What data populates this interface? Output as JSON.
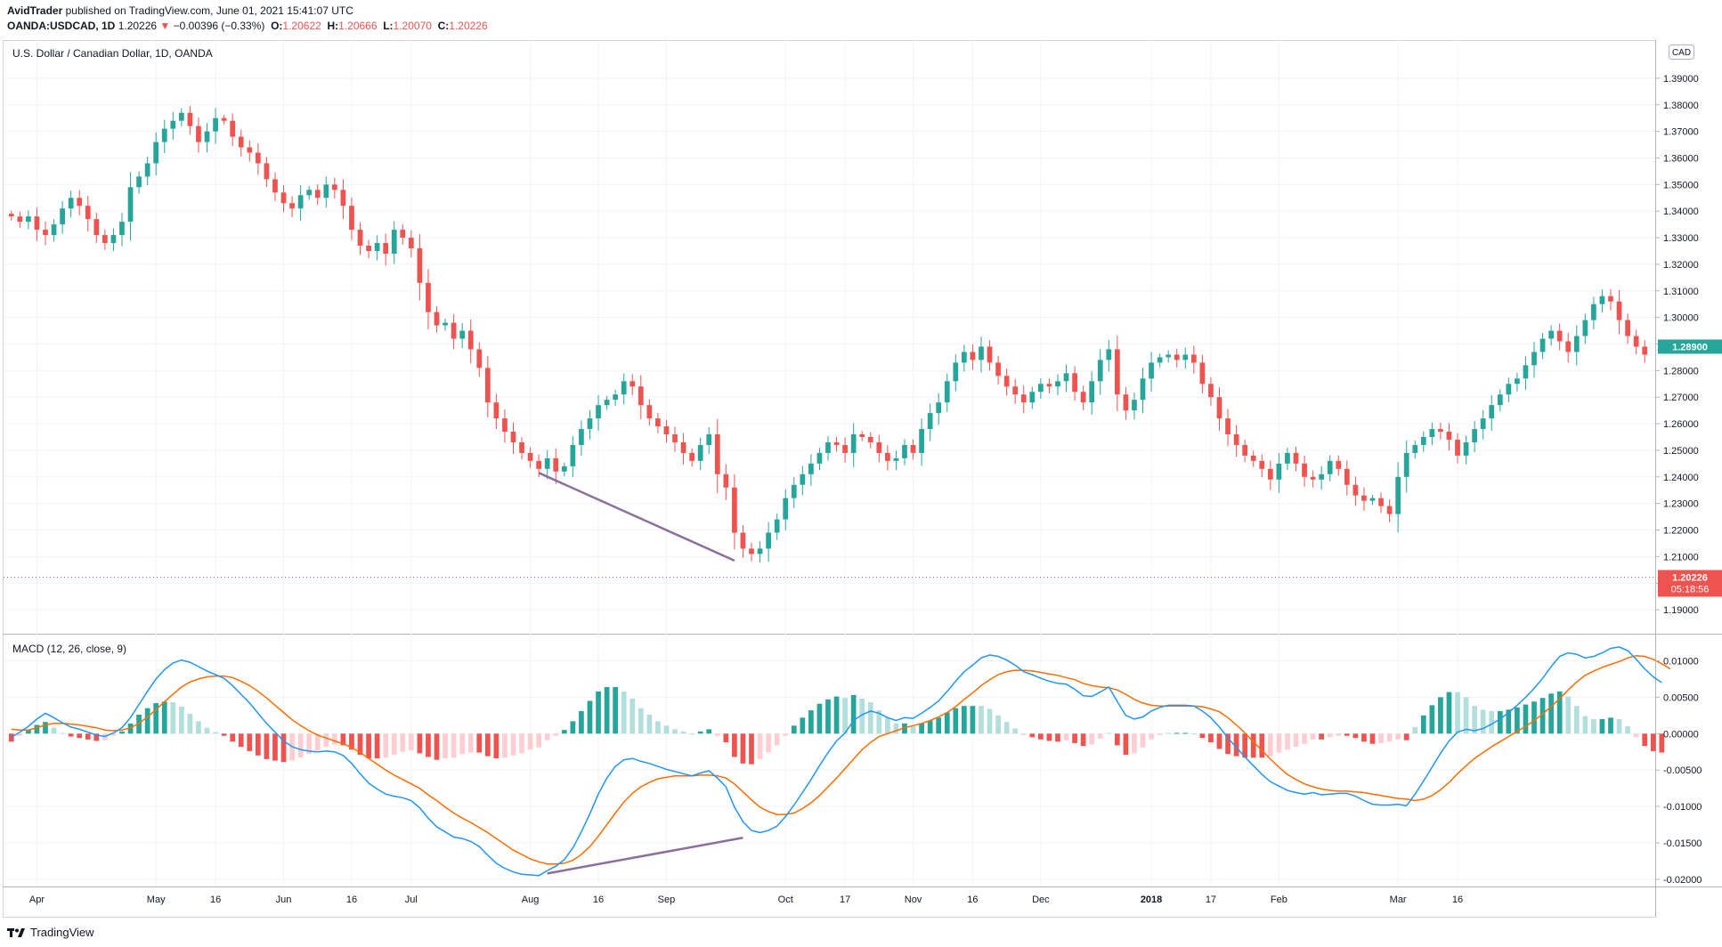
{
  "header": {
    "publisher": "AvidTrader",
    "published_text": "published on TradingView.com, June 01, 2021 15:41:07 UTC",
    "symbol": "OANDA:USDCAD, 1D",
    "last": "1.20226",
    "change": "−0.00396 (−0.33%)",
    "open_label": "O:",
    "open": "1.20622",
    "high_label": "H:",
    "high": "1.20666",
    "low_label": "L:",
    "low": "1.20070",
    "close_label": "C:",
    "close": "1.20226"
  },
  "footer": {
    "brand": "TradingView"
  },
  "colors": {
    "up": "#26a69a",
    "down": "#ef5350",
    "hist_up_strong": "#26a69a",
    "hist_up_weak": "#b2dfdb",
    "hist_dn_strong": "#ef5350",
    "hist_dn_weak": "#ffcdd2",
    "macd_line": "#2196f3",
    "signal_line": "#ff6d00",
    "trendline": "#8a6e9c",
    "grid": "#f0f3fa"
  },
  "chart_data": [
    {
      "type": "candlestick",
      "title": "U.S. Dollar / Canadian Dollar, 1D, OANDA",
      "currency_badge": "CAD",
      "ylim": [
        1.185,
        1.396
      ],
      "y_ticks": [
        "1.39000",
        "1.38000",
        "1.37000",
        "1.36000",
        "1.35000",
        "1.34000",
        "1.33000",
        "1.32000",
        "1.31000",
        "1.30000",
        "1.29000",
        "1.28000",
        "1.27000",
        "1.26000",
        "1.25000",
        "1.24000",
        "1.23000",
        "1.22000",
        "1.21000",
        "1.20000",
        "1.19000"
      ],
      "x_ticks": [
        "Apr",
        "May",
        "16",
        "Jun",
        "16",
        "Jul",
        "Aug",
        "16",
        "Sep",
        "Oct",
        "17",
        "Nov",
        "16",
        "Dec",
        "2018",
        "17",
        "Feb",
        "Mar",
        "16"
      ],
      "price_label": "1.28900",
      "last_price_label": "1.20226",
      "countdown_label": "05:18:56",
      "last_price": 1.20226,
      "closes": [
        1.338,
        1.336,
        1.338,
        1.333,
        1.331,
        1.335,
        1.341,
        1.345,
        1.342,
        1.337,
        1.331,
        1.328,
        1.331,
        1.336,
        1.349,
        1.353,
        1.358,
        1.366,
        1.371,
        1.374,
        1.377,
        1.372,
        1.366,
        1.37,
        1.375,
        1.374,
        1.368,
        1.364,
        1.362,
        1.358,
        1.352,
        1.347,
        1.343,
        1.341,
        1.346,
        1.348,
        1.345,
        1.35,
        1.348,
        1.342,
        1.333,
        1.327,
        1.325,
        1.328,
        1.324,
        1.333,
        1.33,
        1.326,
        1.313,
        1.302,
        1.297,
        1.298,
        1.292,
        1.295,
        1.288,
        1.281,
        1.268,
        1.262,
        1.257,
        1.253,
        1.249,
        1.246,
        1.243,
        1.247,
        1.242,
        1.244,
        1.252,
        1.258,
        1.262,
        1.267,
        1.269,
        1.271,
        1.276,
        1.274,
        1.267,
        1.262,
        1.259,
        1.256,
        1.253,
        1.249,
        1.246,
        1.252,
        1.256,
        1.241,
        1.236,
        1.219,
        1.213,
        1.211,
        1.213,
        1.219,
        1.224,
        1.232,
        1.237,
        1.241,
        1.245,
        1.249,
        1.253,
        1.252,
        1.249,
        1.256,
        1.255,
        1.253,
        1.249,
        1.246,
        1.247,
        1.252,
        1.249,
        1.258,
        1.264,
        1.268,
        1.276,
        1.283,
        1.287,
        1.284,
        1.289,
        1.283,
        1.278,
        1.274,
        1.271,
        1.268,
        1.272,
        1.275,
        1.274,
        1.276,
        1.279,
        1.272,
        1.268,
        1.276,
        1.284,
        1.288,
        1.271,
        1.265,
        1.269,
        1.277,
        1.283,
        1.285,
        1.286,
        1.284,
        1.286,
        1.283,
        1.275,
        1.27,
        1.262,
        1.256,
        1.252,
        1.248,
        1.246,
        1.243,
        1.239,
        1.245,
        1.249,
        1.245,
        1.24,
        1.239,
        1.241,
        1.246,
        1.243,
        1.237,
        1.233,
        1.231,
        1.232,
        1.229,
        1.226,
        1.24,
        1.249,
        1.252,
        1.255,
        1.258,
        1.257,
        1.254,
        1.248,
        1.253,
        1.258,
        1.262,
        1.267,
        1.271,
        1.275,
        1.277,
        1.282,
        1.287,
        1.292,
        1.295,
        1.291,
        1.287,
        1.293,
        1.299,
        1.305,
        1.308,
        1.306,
        1.299,
        1.293,
        1.289,
        1.286
      ],
      "annotation": {
        "type": "trendline",
        "from": [
          1.2415
        ],
        "to": [
          1.2085
        ]
      }
    },
    {
      "type": "histogram+line",
      "title": "MACD (12, 26, close, 9)",
      "ylim": [
        -0.0205,
        0.0125
      ],
      "y_ticks": [
        "0.01000",
        "0.00500",
        "0.00000",
        "-0.00500",
        "-0.01000",
        "-0.01500",
        "-0.02000"
      ],
      "series": [
        {
          "name": "MACD",
          "values": [
            -0.0005,
            0.0002,
            0.001,
            0.002,
            0.0028,
            0.0022,
            0.0015,
            0.0009,
            0.0006,
            0.0002,
            -0.0002,
            -0.0004,
            0.0001,
            0.0008,
            0.0022,
            0.004,
            0.0058,
            0.0075,
            0.0088,
            0.0097,
            0.0101,
            0.0098,
            0.0092,
            0.0086,
            0.0081,
            0.0076,
            0.0066,
            0.0054,
            0.0042,
            0.0028,
            0.0014,
            0.0002,
            -0.001,
            -0.0018,
            -0.0022,
            -0.0024,
            -0.0025,
            -0.0024,
            -0.0025,
            -0.003,
            -0.0041,
            -0.0055,
            -0.0068,
            -0.0076,
            -0.0083,
            -0.0086,
            -0.0088,
            -0.0092,
            -0.0102,
            -0.0116,
            -0.0128,
            -0.0135,
            -0.0142,
            -0.0144,
            -0.0148,
            -0.0155,
            -0.0167,
            -0.0178,
            -0.0185,
            -0.019,
            -0.0193,
            -0.0194,
            -0.0195,
            -0.0188,
            -0.0182,
            -0.0173,
            -0.0157,
            -0.0135,
            -0.011,
            -0.0083,
            -0.0061,
            -0.0045,
            -0.0036,
            -0.0034,
            -0.0038,
            -0.0041,
            -0.0045,
            -0.0049,
            -0.0052,
            -0.0055,
            -0.0058,
            -0.0054,
            -0.0051,
            -0.0061,
            -0.0073,
            -0.0101,
            -0.0121,
            -0.0133,
            -0.0136,
            -0.0133,
            -0.0127,
            -0.0114,
            -0.0098,
            -0.0081,
            -0.0063,
            -0.0044,
            -0.0026,
            -0.001,
            0.0001,
            0.0018,
            0.0026,
            0.0031,
            0.0028,
            0.0022,
            0.0018,
            0.0022,
            0.0021,
            0.0028,
            0.0036,
            0.0045,
            0.0058,
            0.0072,
            0.0085,
            0.0094,
            0.0104,
            0.0108,
            0.0106,
            0.0101,
            0.0094,
            0.0085,
            0.0081,
            0.0076,
            0.0072,
            0.0069,
            0.0068,
            0.0061,
            0.0052,
            0.0051,
            0.0057,
            0.0064,
            0.0044,
            0.0025,
            0.002,
            0.0023,
            0.0031,
            0.0036,
            0.0039,
            0.0039,
            0.0039,
            0.0038,
            0.0031,
            0.0022,
            0.0009,
            -0.0006,
            -0.0019,
            -0.0032,
            -0.0044,
            -0.0056,
            -0.0066,
            -0.0072,
            -0.0078,
            -0.0081,
            -0.0083,
            -0.0081,
            -0.0084,
            -0.0083,
            -0.0082,
            -0.0082,
            -0.0086,
            -0.0092,
            -0.0097,
            -0.0098,
            -0.0098,
            -0.0097,
            -0.0099,
            -0.0083,
            -0.0065,
            -0.0046,
            -0.0027,
            -0.001,
            0.0002,
            0.0006,
            0.0004,
            0.0007,
            0.0013,
            0.002,
            0.0029,
            0.0039,
            0.005,
            0.0062,
            0.0076,
            0.0092,
            0.0106,
            0.0111,
            0.0109,
            0.0104,
            0.0106,
            0.0111,
            0.0117,
            0.0119,
            0.0114,
            0.0102,
            0.0089,
            0.0078,
            0.007
          ]
        },
        {
          "name": "Signal",
          "values": [
            0.0006,
            0.0005,
            0.0005,
            0.0008,
            0.0012,
            0.0014,
            0.0014,
            0.0013,
            0.0012,
            0.001,
            0.0008,
            0.0005,
            0.0004,
            0.0005,
            0.0008,
            0.0014,
            0.0023,
            0.0033,
            0.0044,
            0.0054,
            0.0064,
            0.0071,
            0.0075,
            0.0078,
            0.0079,
            0.0079,
            0.0077,
            0.0072,
            0.0066,
            0.0058,
            0.0049,
            0.0039,
            0.0029,
            0.0019,
            0.0011,
            0.0004,
            -0.0002,
            -0.0006,
            -0.001,
            -0.0014,
            -0.0019,
            -0.0026,
            -0.0034,
            -0.0042,
            -0.005,
            -0.0057,
            -0.0063,
            -0.0069,
            -0.0075,
            -0.0084,
            -0.0092,
            -0.0101,
            -0.0109,
            -0.0116,
            -0.0122,
            -0.0129,
            -0.0136,
            -0.0144,
            -0.0152,
            -0.016,
            -0.0166,
            -0.0172,
            -0.0176,
            -0.0179,
            -0.0179,
            -0.0178,
            -0.0174,
            -0.0166,
            -0.0155,
            -0.0141,
            -0.0125,
            -0.0109,
            -0.0094,
            -0.0082,
            -0.0073,
            -0.0067,
            -0.0062,
            -0.006,
            -0.0058,
            -0.0058,
            -0.0058,
            -0.0057,
            -0.0057,
            -0.0058,
            -0.0061,
            -0.0069,
            -0.008,
            -0.0091,
            -0.0101,
            -0.0107,
            -0.0111,
            -0.0111,
            -0.0109,
            -0.0103,
            -0.0095,
            -0.0085,
            -0.0073,
            -0.0061,
            -0.0048,
            -0.0035,
            -0.0022,
            -0.0012,
            -0.0004,
            0.0,
            0.0004,
            0.0008,
            0.0011,
            0.0014,
            0.0018,
            0.0023,
            0.0029,
            0.0037,
            0.0047,
            0.0056,
            0.0066,
            0.0074,
            0.0081,
            0.0085,
            0.0087,
            0.0087,
            0.0086,
            0.0084,
            0.0082,
            0.008,
            0.0077,
            0.0074,
            0.0069,
            0.0066,
            0.0064,
            0.0063,
            0.006,
            0.0054,
            0.0047,
            0.0042,
            0.0039,
            0.0038,
            0.0038,
            0.0038,
            0.0038,
            0.0038,
            0.0037,
            0.0034,
            0.003,
            0.0022,
            0.0012,
            0.0001,
            -0.0011,
            -0.0023,
            -0.0035,
            -0.0046,
            -0.0056,
            -0.0063,
            -0.0069,
            -0.0073,
            -0.0076,
            -0.0078,
            -0.0079,
            -0.0079,
            -0.008,
            -0.0081,
            -0.0083,
            -0.0085,
            -0.0087,
            -0.0089,
            -0.009,
            -0.0092,
            -0.009,
            -0.0085,
            -0.0077,
            -0.0067,
            -0.0055,
            -0.0044,
            -0.0034,
            -0.0026,
            -0.0018,
            -0.0011,
            -0.0004,
            0.0003,
            0.001,
            0.0018,
            0.0027,
            0.0037,
            0.0048,
            0.006,
            0.0071,
            0.008,
            0.0086,
            0.0091,
            0.0095,
            0.0099,
            0.0104,
            0.0107,
            0.0106,
            0.0102,
            0.0096,
            0.0089
          ]
        }
      ],
      "annotation": {
        "type": "trendline",
        "from": [
          -0.0192
        ],
        "to": [
          -0.0143
        ]
      }
    }
  ]
}
